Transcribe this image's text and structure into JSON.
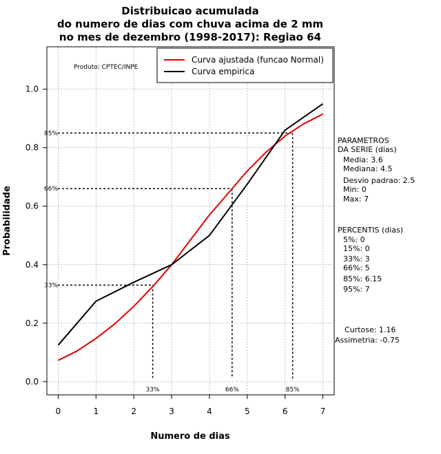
{
  "chart_data": {
    "type": "line",
    "title": [
      "Distribuicao acumulada",
      "do numero de dias com chuva acima de 2 mm",
      "no mes de dezembro (1998-2017): Regiao 64"
    ],
    "xlabel": "Numero de dias",
    "ylabel": "Probabilidade",
    "xlim": [
      -0.3,
      7.3
    ],
    "ylim": [
      -0.045,
      1.145
    ],
    "x_ticks": [
      0,
      1,
      2,
      3,
      4,
      5,
      6,
      7
    ],
    "y_ticks": [
      0.0,
      0.2,
      0.4,
      0.6,
      0.8,
      1.0
    ],
    "y_tick_labels": [
      "0.0",
      "0.2",
      "0.4",
      "0.6",
      "0.8",
      "1.0"
    ],
    "grid": true,
    "series": [
      {
        "name": "Curva ajustada (funcao Normal)",
        "color": "#e00000",
        "x": [
          0,
          0.5,
          1,
          1.5,
          2,
          2.5,
          3,
          3.5,
          4,
          4.5,
          5,
          5.5,
          6,
          6.5,
          7
        ],
        "y": [
          0.073,
          0.105,
          0.148,
          0.198,
          0.258,
          0.325,
          0.4,
          0.485,
          0.57,
          0.645,
          0.72,
          0.785,
          0.84,
          0.882,
          0.915
        ]
      },
      {
        "name": "Curva empirica",
        "color": "#000000",
        "x": [
          0,
          1,
          2,
          3,
          4,
          5,
          6,
          7
        ],
        "y": [
          0.125,
          0.275,
          0.34,
          0.4,
          0.5,
          0.675,
          0.86,
          0.95
        ]
      }
    ],
    "percentile_markers": [
      {
        "label": "33%",
        "x": 2.5,
        "y": 0.33
      },
      {
        "label": "66%",
        "x": 4.6,
        "y": 0.66
      },
      {
        "label": "85%",
        "x": 6.2,
        "y": 0.85
      }
    ],
    "legend_position": "top-right",
    "annotation": "Produto: CPTEC/INPE"
  },
  "side_panel": {
    "params_title": [
      "PARAMETROS",
      "DA SERIE (dias)"
    ],
    "params": [
      "Media: 3.6",
      "Mediana: 4.5",
      "Desvio padrao: 2.5",
      "Min: 0",
      "Max: 7"
    ],
    "percentis_title": "PERCENTIS (dias)",
    "percentis": [
      "5%: 0",
      "15%: 0",
      "33%: 3",
      "66%: 5",
      "85%: 6.15",
      "95%: 7"
    ],
    "curtose": "Curtose: 1.16",
    "assimetria": "Assimetria: -0.75"
  }
}
